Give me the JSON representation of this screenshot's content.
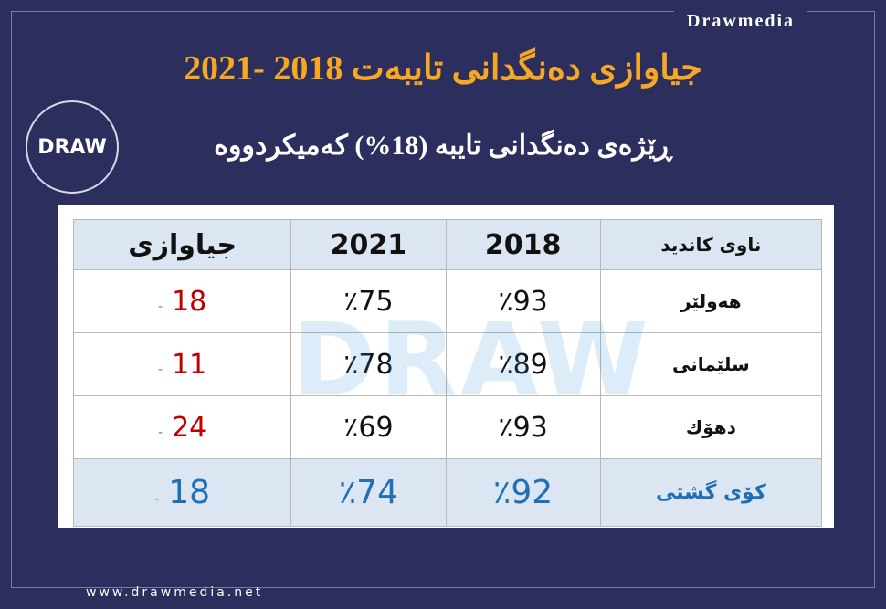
{
  "brand": "Drawmedia",
  "logo": {
    "text": "DRAW"
  },
  "title": "جیاوازی دەنگدانی تایبەت 2018 -2021",
  "subtitle": "ڕێژەی دەنگدانی تایبە (18%) کەمیکردووە",
  "table": {
    "header": [
      "ناوی کاندید",
      "2018",
      "2021",
      "جیاوازی"
    ],
    "rows": [
      [
        "هەولێر",
        "٪93",
        "٪75",
        {
          "value": "18",
          "sign": "-"
        }
      ],
      [
        "سلێمانی",
        "٪89",
        "٪78",
        {
          "value": "11",
          "sign": "-"
        }
      ],
      [
        "دهۆك",
        "٪93",
        "٪69",
        {
          "value": "24",
          "sign": "-"
        }
      ]
    ],
    "total": [
      "کۆی گشتی",
      "٪92",
      "٪74",
      {
        "value": "18",
        "sign": "-"
      }
    ]
  },
  "watermark": "DRAW",
  "footer": "www.drawmedia.net"
}
